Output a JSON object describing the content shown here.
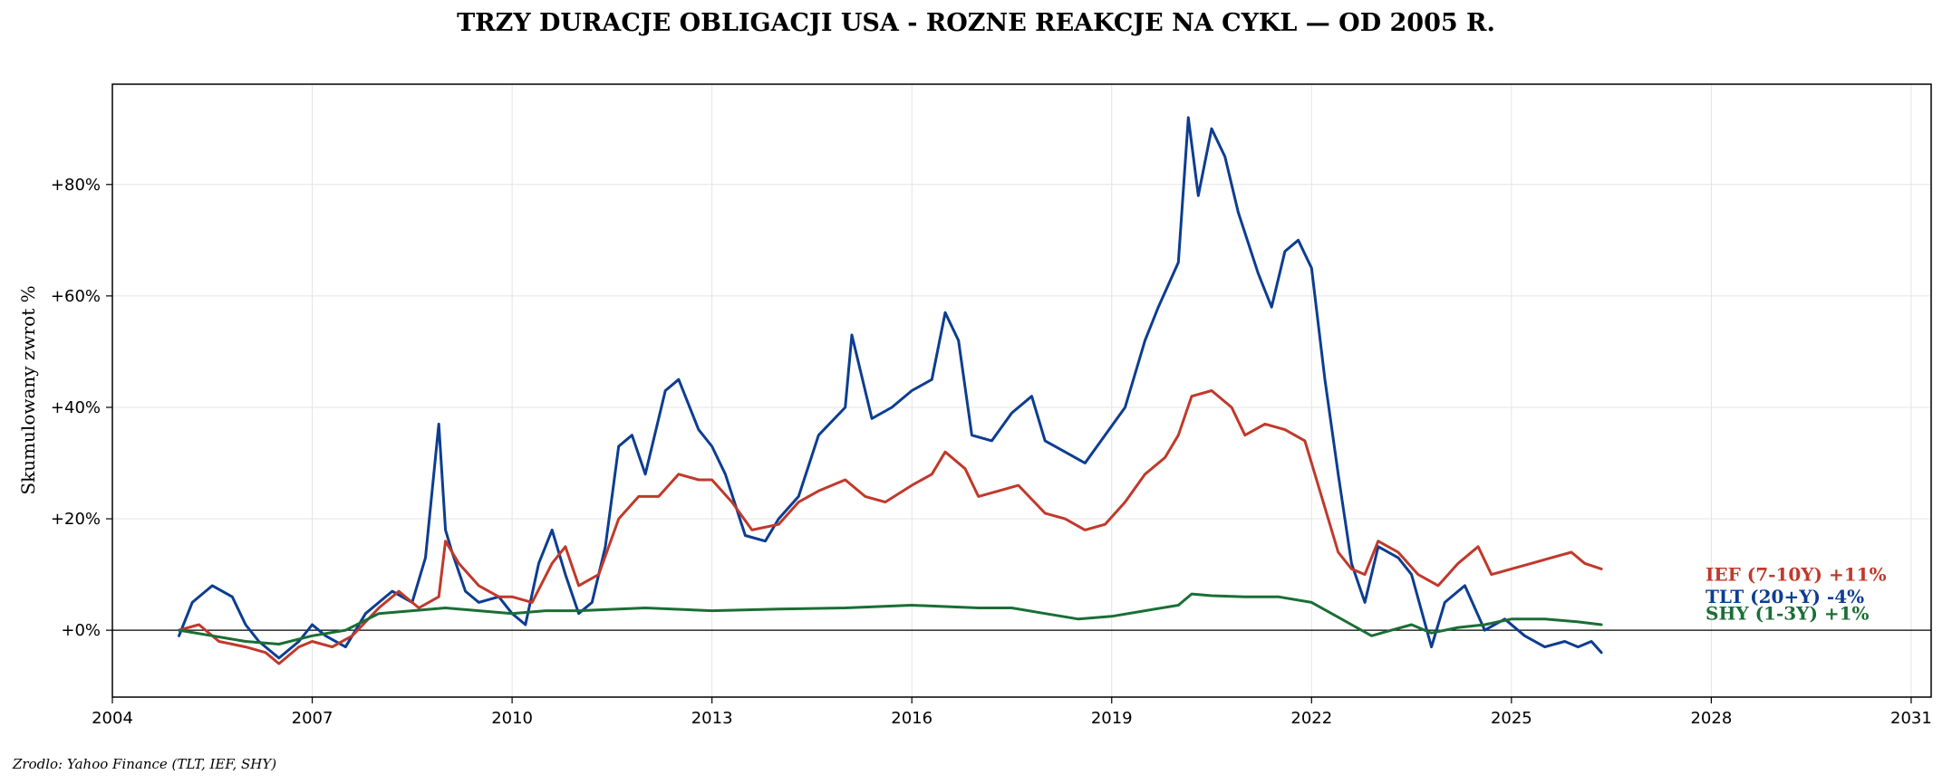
{
  "chart_data": {
    "type": "line",
    "title": "TRZY DURACJE OBLIGACJI USA - ROZNE REAKCJE NA CYKL — OD 2005 R.",
    "xlabel": "",
    "ylabel": "Skumulowany zwrot %",
    "source": "Zrodlo: Yahoo Finance (TLT, IEF, SHY)",
    "xlim": [
      2004.0,
      2031.3
    ],
    "ylim": [
      -12,
      98
    ],
    "x_ticks": [
      2004,
      2007,
      2010,
      2013,
      2016,
      2019,
      2022,
      2025,
      2028,
      2031
    ],
    "y_ticks": [
      0,
      20,
      40,
      60,
      80
    ],
    "y_tick_labels": [
      "+0%",
      "+20%",
      "+40%",
      "+60%",
      "+80%"
    ],
    "grid": true,
    "zero_line": true,
    "series": [
      {
        "name": "TLT (20+Y)",
        "end_label": "TLT (20+Y)  -4%",
        "color": "#0c3d91",
        "x": [
          2005.0,
          2005.2,
          2005.5,
          2005.8,
          2006.0,
          2006.2,
          2006.5,
          2006.8,
          2007.0,
          2007.2,
          2007.5,
          2007.8,
          2008.0,
          2008.2,
          2008.5,
          2008.7,
          2008.9,
          2009.0,
          2009.1,
          2009.3,
          2009.5,
          2009.8,
          2010.0,
          2010.2,
          2010.4,
          2010.6,
          2010.8,
          2011.0,
          2011.2,
          2011.4,
          2011.6,
          2011.8,
          2012.0,
          2012.3,
          2012.5,
          2012.8,
          2013.0,
          2013.2,
          2013.5,
          2013.8,
          2014.0,
          2014.3,
          2014.6,
          2015.0,
          2015.1,
          2015.4,
          2015.7,
          2016.0,
          2016.3,
          2016.5,
          2016.7,
          2016.9,
          2017.2,
          2017.5,
          2017.8,
          2018.0,
          2018.3,
          2018.6,
          2018.9,
          2019.2,
          2019.5,
          2019.7,
          2020.0,
          2020.15,
          2020.3,
          2020.5,
          2020.7,
          2020.9,
          2021.2,
          2021.4,
          2021.6,
          2021.8,
          2022.0,
          2022.2,
          2022.4,
          2022.6,
          2022.8,
          2023.0,
          2023.3,
          2023.5,
          2023.8,
          2024.0,
          2024.3,
          2024.6,
          2024.9,
          2025.2,
          2025.5,
          2025.8,
          2026.0,
          2026.2,
          2026.35
        ],
        "values": [
          -1,
          5,
          8,
          6,
          1,
          -2,
          -5,
          -2,
          1,
          -1,
          -3,
          3,
          5,
          7,
          5,
          13,
          37,
          18,
          14,
          7,
          5,
          6,
          3,
          1,
          12,
          18,
          10,
          3,
          5,
          15,
          33,
          35,
          28,
          43,
          45,
          36,
          33,
          28,
          17,
          16,
          20,
          24,
          35,
          40,
          53,
          38,
          40,
          43,
          45,
          57,
          52,
          35,
          34,
          39,
          42,
          34,
          32,
          30,
          35,
          40,
          52,
          58,
          66,
          92,
          78,
          90,
          85,
          75,
          64,
          58,
          68,
          70,
          65,
          45,
          28,
          12,
          5,
          15,
          13,
          10,
          -3,
          5,
          8,
          0,
          2,
          -1,
          -3,
          -2,
          -3,
          -2,
          -4
        ]
      },
      {
        "name": "IEF (7-10Y)",
        "end_label": "IEF (7-10Y)  +11%",
        "color": "#c0392b",
        "x": [
          2005.0,
          2005.3,
          2005.6,
          2006.0,
          2006.3,
          2006.5,
          2006.8,
          2007.0,
          2007.3,
          2007.6,
          2008.0,
          2008.3,
          2008.6,
          2008.9,
          2009.0,
          2009.2,
          2009.5,
          2009.8,
          2010.0,
          2010.3,
          2010.6,
          2010.8,
          2011.0,
          2011.3,
          2011.6,
          2011.9,
          2012.2,
          2012.5,
          2012.8,
          2013.0,
          2013.3,
          2013.6,
          2014.0,
          2014.3,
          2014.6,
          2015.0,
          2015.3,
          2015.6,
          2016.0,
          2016.3,
          2016.5,
          2016.8,
          2017.0,
          2017.3,
          2017.6,
          2018.0,
          2018.3,
          2018.6,
          2018.9,
          2019.2,
          2019.5,
          2019.8,
          2020.0,
          2020.2,
          2020.5,
          2020.8,
          2021.0,
          2021.3,
          2021.6,
          2021.9,
          2022.0,
          2022.2,
          2022.4,
          2022.6,
          2022.8,
          2023.0,
          2023.3,
          2023.6,
          2023.9,
          2024.2,
          2024.5,
          2024.7,
          2025.0,
          2025.3,
          2025.6,
          2025.9,
          2026.1,
          2026.35
        ],
        "values": [
          0,
          1,
          -2,
          -3,
          -4,
          -6,
          -3,
          -2,
          -3,
          -1,
          4,
          7,
          4,
          6,
          16,
          12,
          8,
          6,
          6,
          5,
          12,
          15,
          8,
          10,
          20,
          24,
          24,
          28,
          27,
          27,
          23,
          18,
          19,
          23,
          25,
          27,
          24,
          23,
          26,
          28,
          32,
          29,
          24,
          25,
          26,
          21,
          20,
          18,
          19,
          23,
          28,
          31,
          35,
          42,
          43,
          40,
          35,
          37,
          36,
          34,
          30,
          22,
          14,
          11,
          10,
          16,
          14,
          10,
          8,
          12,
          15,
          10,
          11,
          12,
          13,
          14,
          12,
          11
        ]
      },
      {
        "name": "SHY (1-3Y)",
        "end_label": "SHY (1-3Y)  +1%",
        "color": "#1a6e35",
        "x": [
          2005.0,
          2005.5,
          2006.0,
          2006.5,
          2007.0,
          2007.5,
          2008.0,
          2008.5,
          2009.0,
          2009.5,
          2010.0,
          2010.5,
          2011.0,
          2012.0,
          2013.0,
          2014.0,
          2015.0,
          2016.0,
          2017.0,
          2017.5,
          2018.0,
          2018.5,
          2019.0,
          2019.5,
          2020.0,
          2020.2,
          2020.5,
          2021.0,
          2021.5,
          2022.0,
          2022.3,
          2022.6,
          2022.9,
          2023.2,
          2023.5,
          2023.8,
          2024.2,
          2024.6,
          2025.0,
          2025.5,
          2026.0,
          2026.35
        ],
        "values": [
          0,
          -1,
          -2,
          -2.5,
          -1,
          0,
          3,
          3.5,
          4,
          3.5,
          3,
          3.5,
          3.5,
          4,
          3.5,
          3.8,
          4,
          4.5,
          4,
          4,
          3,
          2,
          2.5,
          3.5,
          4.5,
          6.5,
          6.2,
          6,
          6,
          5,
          3,
          1,
          -1,
          0,
          1,
          -0.5,
          0.5,
          1,
          2,
          2,
          1.5,
          1
        ]
      }
    ]
  }
}
